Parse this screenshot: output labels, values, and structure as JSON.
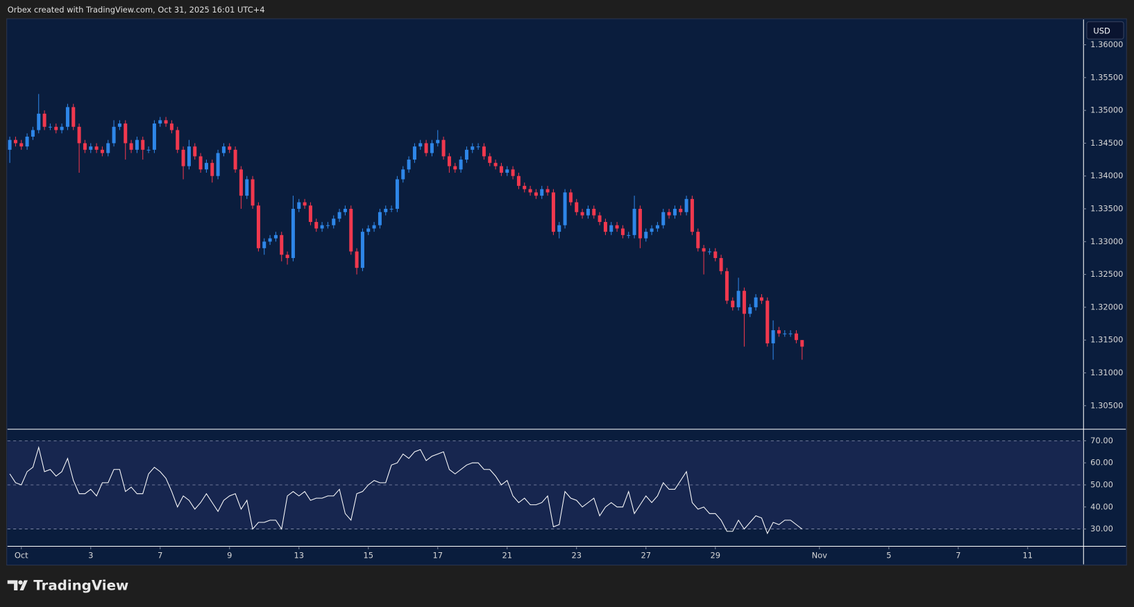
{
  "header": {
    "text": "Orbex created with TradingView.com, Oct 31, 2025 16:01 UTC+4"
  },
  "currency": "USD",
  "footer": {
    "brand": "TradingView"
  },
  "chart_data": [
    {
      "type": "candlestick",
      "up_color": "#2e86e8",
      "down_color": "#f0384e",
      "xlim": [
        -2.4,
        183.6
      ],
      "ylim": [
        1.30152,
        1.36385
      ],
      "yticks": [
        {
          "value": 1.305,
          "label": "1.30500"
        },
        {
          "value": 1.31,
          "label": "1.31000"
        },
        {
          "value": 1.315,
          "label": "1.31500"
        },
        {
          "value": 1.32,
          "label": "1.32000"
        },
        {
          "value": 1.325,
          "label": "1.32500"
        },
        {
          "value": 1.33,
          "label": "1.33000"
        },
        {
          "value": 1.335,
          "label": "1.33500"
        },
        {
          "value": 1.34,
          "label": "1.34000"
        },
        {
          "value": 1.345,
          "label": "1.34500"
        },
        {
          "value": 1.35,
          "label": "1.35000"
        },
        {
          "value": 1.355,
          "label": "1.35500"
        },
        {
          "value": 1.36,
          "label": "1.36000"
        }
      ],
      "x": [
        -2,
        -1,
        0,
        1,
        2,
        3,
        4,
        5,
        6,
        7,
        8,
        9,
        10,
        11,
        12,
        13,
        14,
        15,
        16,
        17,
        18,
        19,
        20,
        21,
        22,
        23,
        24,
        25,
        26,
        27,
        28,
        29,
        30,
        31,
        32,
        33,
        34,
        35,
        36,
        37,
        38,
        39,
        40,
        41,
        42,
        43,
        44,
        45,
        46,
        47,
        48,
        49,
        50,
        51,
        52,
        53,
        54,
        55,
        56,
        57,
        58,
        59,
        60,
        61,
        62,
        63,
        64,
        65,
        66,
        67,
        68,
        69,
        70,
        71,
        72,
        73,
        74,
        75,
        76,
        77,
        78,
        79,
        80,
        81,
        82,
        83,
        84,
        85,
        86,
        87,
        88,
        89,
        90,
        91,
        92,
        93,
        94,
        95,
        96,
        97,
        98,
        99,
        100,
        101,
        102,
        103,
        104,
        105,
        106,
        107,
        108,
        109,
        110,
        111,
        112,
        113,
        114,
        115,
        116,
        117,
        118,
        119,
        120,
        121,
        122,
        123,
        124,
        125,
        126,
        127,
        128,
        129,
        130,
        131,
        132,
        133,
        134,
        135
      ],
      "open": [
        1.344,
        1.3455,
        1.345,
        1.3445,
        1.346,
        1.347,
        1.3495,
        1.3475,
        1.3475,
        1.347,
        1.3475,
        1.3505,
        1.3475,
        1.345,
        1.344,
        1.3445,
        1.344,
        1.3435,
        1.345,
        1.3475,
        1.348,
        1.345,
        1.344,
        1.3455,
        1.344,
        1.344,
        1.348,
        1.3485,
        1.348,
        1.347,
        1.344,
        1.3415,
        1.3445,
        1.343,
        1.341,
        1.342,
        1.34,
        1.3435,
        1.3445,
        1.344,
        1.341,
        1.337,
        1.3395,
        1.3355,
        1.329,
        1.33,
        1.3305,
        1.331,
        1.328,
        1.3275,
        1.335,
        1.336,
        1.3355,
        1.333,
        1.332,
        1.3325,
        1.3325,
        1.3335,
        1.3345,
        1.335,
        1.3285,
        1.326,
        1.3315,
        1.332,
        1.3325,
        1.3345,
        1.335,
        1.335,
        1.3395,
        1.341,
        1.3425,
        1.3445,
        1.345,
        1.3435,
        1.345,
        1.3455,
        1.343,
        1.3415,
        1.341,
        1.3425,
        1.344,
        1.3445,
        1.3445,
        1.343,
        1.342,
        1.3415,
        1.3405,
        1.341,
        1.34,
        1.3385,
        1.338,
        1.3375,
        1.337,
        1.338,
        1.3375,
        1.3315,
        1.3325,
        1.3375,
        1.336,
        1.3345,
        1.334,
        1.335,
        1.334,
        1.333,
        1.3315,
        1.3325,
        1.332,
        1.331,
        1.331,
        1.335,
        1.3305,
        1.3315,
        1.332,
        1.3325,
        1.3345,
        1.334,
        1.335,
        1.3345,
        1.3365,
        1.3315,
        1.329,
        1.3285,
        1.3285,
        1.3275,
        1.3255,
        1.321,
        1.32,
        1.3225,
        1.319,
        1.32,
        1.3215,
        1.321,
        1.3145,
        1.3165,
        1.316,
        1.316,
        1.316,
        1.315
      ],
      "high": [
        1.346,
        1.346,
        1.3455,
        1.3465,
        1.3475,
        1.3525,
        1.35,
        1.348,
        1.348,
        1.348,
        1.351,
        1.351,
        1.348,
        1.3455,
        1.345,
        1.345,
        1.3445,
        1.3455,
        1.3485,
        1.3485,
        1.3485,
        1.3455,
        1.346,
        1.346,
        1.3445,
        1.3485,
        1.349,
        1.349,
        1.3485,
        1.3475,
        1.3445,
        1.3455,
        1.345,
        1.3435,
        1.3425,
        1.3425,
        1.344,
        1.345,
        1.345,
        1.3445,
        1.3415,
        1.34,
        1.34,
        1.336,
        1.3305,
        1.331,
        1.3315,
        1.3315,
        1.3285,
        1.337,
        1.3365,
        1.3365,
        1.336,
        1.3335,
        1.333,
        1.333,
        1.334,
        1.335,
        1.3355,
        1.3355,
        1.329,
        1.332,
        1.3325,
        1.333,
        1.335,
        1.3355,
        1.3355,
        1.34,
        1.3415,
        1.343,
        1.345,
        1.3455,
        1.3455,
        1.3455,
        1.347,
        1.346,
        1.3435,
        1.342,
        1.343,
        1.3445,
        1.345,
        1.345,
        1.345,
        1.3435,
        1.3425,
        1.342,
        1.3415,
        1.3415,
        1.3405,
        1.339,
        1.3385,
        1.338,
        1.3385,
        1.3385,
        1.338,
        1.333,
        1.338,
        1.338,
        1.3365,
        1.335,
        1.3355,
        1.3355,
        1.3345,
        1.3335,
        1.333,
        1.333,
        1.3325,
        1.3315,
        1.337,
        1.3355,
        1.332,
        1.3325,
        1.333,
        1.335,
        1.335,
        1.3355,
        1.3355,
        1.337,
        1.337,
        1.332,
        1.3295,
        1.329,
        1.329,
        1.328,
        1.326,
        1.3215,
        1.3245,
        1.323,
        1.3205,
        1.322,
        1.322,
        1.3215,
        1.318,
        1.317,
        1.3165,
        1.3165,
        1.3165,
        1.315
      ],
      "low": [
        1.342,
        1.3445,
        1.344,
        1.344,
        1.3455,
        1.3465,
        1.347,
        1.347,
        1.3465,
        1.3465,
        1.347,
        1.347,
        1.3405,
        1.3435,
        1.3435,
        1.3435,
        1.343,
        1.343,
        1.3445,
        1.347,
        1.3425,
        1.3435,
        1.3435,
        1.3425,
        1.3435,
        1.3435,
        1.3475,
        1.3475,
        1.3465,
        1.3435,
        1.3395,
        1.341,
        1.3425,
        1.3405,
        1.3405,
        1.339,
        1.3395,
        1.343,
        1.3435,
        1.3405,
        1.335,
        1.3365,
        1.335,
        1.3285,
        1.328,
        1.3295,
        1.33,
        1.327,
        1.3265,
        1.327,
        1.3345,
        1.335,
        1.3325,
        1.3315,
        1.3315,
        1.332,
        1.332,
        1.333,
        1.334,
        1.328,
        1.325,
        1.3255,
        1.331,
        1.3315,
        1.332,
        1.334,
        1.3345,
        1.3345,
        1.339,
        1.3405,
        1.342,
        1.344,
        1.343,
        1.343,
        1.3445,
        1.3425,
        1.3405,
        1.3405,
        1.3405,
        1.342,
        1.3435,
        1.344,
        1.3425,
        1.3415,
        1.341,
        1.34,
        1.34,
        1.3395,
        1.338,
        1.3375,
        1.337,
        1.3365,
        1.3365,
        1.337,
        1.331,
        1.3305,
        1.332,
        1.3355,
        1.334,
        1.3335,
        1.3335,
        1.3335,
        1.3325,
        1.331,
        1.331,
        1.3315,
        1.3305,
        1.3305,
        1.3305,
        1.329,
        1.33,
        1.331,
        1.3315,
        1.332,
        1.3335,
        1.3335,
        1.334,
        1.334,
        1.331,
        1.3285,
        1.325,
        1.328,
        1.327,
        1.325,
        1.3205,
        1.3195,
        1.3195,
        1.314,
        1.3185,
        1.3195,
        1.3205,
        1.314,
        1.312,
        1.3155,
        1.3155,
        1.3155,
        1.3145,
        1.312
      ],
      "close": [
        1.3455,
        1.345,
        1.3445,
        1.346,
        1.347,
        1.3495,
        1.3475,
        1.3475,
        1.347,
        1.3475,
        1.3505,
        1.3475,
        1.345,
        1.344,
        1.3445,
        1.344,
        1.3435,
        1.345,
        1.3475,
        1.348,
        1.345,
        1.344,
        1.3455,
        1.344,
        1.344,
        1.348,
        1.3485,
        1.348,
        1.347,
        1.344,
        1.3415,
        1.3445,
        1.343,
        1.341,
        1.342,
        1.34,
        1.3435,
        1.3445,
        1.344,
        1.341,
        1.337,
        1.3395,
        1.3355,
        1.329,
        1.33,
        1.3305,
        1.331,
        1.328,
        1.3275,
        1.335,
        1.336,
        1.3355,
        1.333,
        1.332,
        1.3325,
        1.3325,
        1.3335,
        1.3345,
        1.335,
        1.3285,
        1.326,
        1.3315,
        1.332,
        1.3325,
        1.3345,
        1.335,
        1.335,
        1.3395,
        1.341,
        1.3425,
        1.3445,
        1.345,
        1.3435,
        1.345,
        1.3455,
        1.343,
        1.3415,
        1.341,
        1.3425,
        1.344,
        1.3445,
        1.3445,
        1.343,
        1.342,
        1.3415,
        1.3405,
        1.341,
        1.34,
        1.3385,
        1.338,
        1.3375,
        1.337,
        1.338,
        1.3375,
        1.3315,
        1.3325,
        1.3375,
        1.336,
        1.3345,
        1.334,
        1.335,
        1.334,
        1.333,
        1.3315,
        1.3325,
        1.332,
        1.331,
        1.331,
        1.335,
        1.3305,
        1.3315,
        1.332,
        1.3325,
        1.3345,
        1.334,
        1.335,
        1.3345,
        1.3365,
        1.3315,
        1.329,
        1.3285,
        1.3285,
        1.3275,
        1.3255,
        1.321,
        1.32,
        1.3225,
        1.319,
        1.32,
        1.3215,
        1.321,
        1.3145,
        1.3165,
        1.316,
        1.316,
        1.316,
        1.315,
        1.314
      ]
    },
    {
      "type": "line",
      "color": "#ffffff",
      "band": [
        30,
        70
      ],
      "band_color": "#17264f",
      "xlim": [
        -2.4,
        183.6
      ],
      "xticks": [
        {
          "value": 0,
          "label": "Oct"
        },
        {
          "value": 12,
          "label": "3"
        },
        {
          "value": 24,
          "label": "7"
        },
        {
          "value": 36,
          "label": "9"
        },
        {
          "value": 48,
          "label": "13"
        },
        {
          "value": 60,
          "label": "15"
        },
        {
          "value": 72,
          "label": "17"
        },
        {
          "value": 84,
          "label": "21"
        },
        {
          "value": 96,
          "label": "23"
        },
        {
          "value": 108,
          "label": "27"
        },
        {
          "value": 120,
          "label": "29"
        },
        {
          "value": 138,
          "label": "Nov"
        },
        {
          "value": 150,
          "label": "5"
        },
        {
          "value": 162,
          "label": "7"
        },
        {
          "value": 174,
          "label": "11"
        }
      ],
      "ylim": [
        22.5,
        74.9
      ],
      "yticks": [
        {
          "value": 30,
          "label": "30.00"
        },
        {
          "value": 40,
          "label": "40.00"
        },
        {
          "value": 50,
          "label": "50.00"
        },
        {
          "value": 60,
          "label": "60.00"
        },
        {
          "value": 70,
          "label": "70.00"
        }
      ],
      "grid_ticks": [
        30,
        50,
        70
      ],
      "x": [
        -2,
        -1,
        0,
        1,
        2,
        3,
        4,
        5,
        6,
        7,
        8,
        9,
        10,
        11,
        12,
        13,
        14,
        15,
        16,
        17,
        18,
        19,
        20,
        21,
        22,
        23,
        24,
        25,
        26,
        27,
        28,
        29,
        30,
        31,
        32,
        33,
        34,
        35,
        36,
        37,
        38,
        39,
        40,
        41,
        42,
        43,
        44,
        45,
        46,
        47,
        48,
        49,
        50,
        51,
        52,
        53,
        54,
        55,
        56,
        57,
        58,
        59,
        60,
        61,
        62,
        63,
        64,
        65,
        66,
        67,
        68,
        69,
        70,
        71,
        72,
        73,
        74,
        75,
        76,
        77,
        78,
        79,
        80,
        81,
        82,
        83,
        84,
        85,
        86,
        87,
        88,
        89,
        90,
        91,
        92,
        93,
        94,
        95,
        96,
        97,
        98,
        99,
        100,
        101,
        102,
        103,
        104,
        105,
        106,
        107,
        108,
        109,
        110,
        111,
        112,
        113,
        114,
        115,
        116,
        117,
        118,
        119,
        120,
        121,
        122,
        123,
        124,
        125,
        126,
        127,
        128,
        129,
        130,
        131,
        132,
        133,
        134,
        135
      ],
      "values": [
        55,
        51,
        50,
        56,
        58,
        67,
        56,
        57,
        54,
        56,
        62,
        52,
        46,
        46,
        48,
        45,
        51,
        51,
        57,
        57,
        47,
        49,
        46,
        46,
        55,
        58,
        56,
        53,
        47,
        40,
        45,
        43,
        39,
        42,
        46,
        42,
        38,
        43,
        45,
        46,
        39,
        43,
        30,
        33,
        33,
        34,
        34,
        30,
        45,
        47,
        45,
        47,
        43,
        44,
        44,
        45,
        45,
        48,
        37,
        34,
        46,
        47,
        50,
        52,
        51,
        51,
        59,
        60,
        64,
        62,
        65,
        66,
        61,
        63,
        64,
        65,
        57,
        55,
        57,
        59,
        60,
        60,
        57,
        57,
        54,
        50,
        52,
        45,
        42,
        44,
        41,
        41,
        42,
        45,
        31,
        32,
        47,
        44,
        43,
        40,
        42,
        44,
        36,
        40,
        42,
        40,
        40,
        47,
        37,
        41,
        45,
        42,
        45,
        51,
        48,
        48,
        52,
        56,
        42,
        39,
        40,
        37,
        37,
        34,
        29,
        29,
        34,
        30,
        33,
        36,
        35,
        28,
        33,
        32,
        34,
        34,
        32,
        30
      ]
    }
  ]
}
